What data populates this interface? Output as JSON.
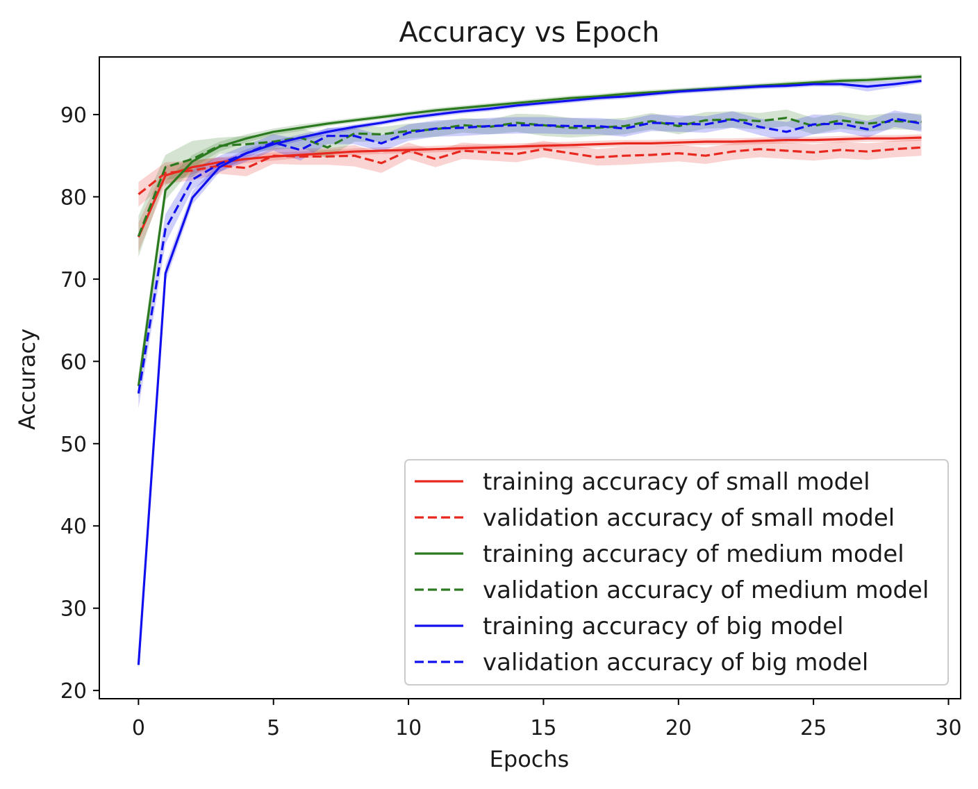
{
  "chart_data": {
    "type": "line",
    "title": "Accuracy vs Epoch",
    "xlabel": "Epochs",
    "ylabel": "Accuracy",
    "xlim": [
      -1.45,
      30.45
    ],
    "ylim": [
      19,
      97
    ],
    "xticks": [
      0,
      5,
      10,
      15,
      20,
      25,
      30
    ],
    "yticks": [
      20,
      30,
      40,
      50,
      60,
      70,
      80,
      90
    ],
    "grid": false,
    "legend_position": "lower right",
    "x": [
      0,
      1,
      2,
      3,
      4,
      5,
      6,
      7,
      8,
      9,
      10,
      11,
      12,
      13,
      14,
      15,
      16,
      17,
      18,
      19,
      20,
      21,
      22,
      23,
      24,
      25,
      26,
      27,
      28,
      29
    ],
    "series": [
      {
        "name": "training accuracy of small model",
        "color": "#e8281e",
        "style": "solid",
        "values": [
          75.1,
          82.6,
          83.6,
          84.2,
          84.6,
          84.9,
          85.1,
          85.3,
          85.5,
          85.6,
          85.7,
          85.8,
          85.9,
          86.0,
          86.1,
          86.2,
          86.3,
          86.4,
          86.5,
          86.5,
          86.6,
          86.7,
          86.7,
          86.8,
          86.9,
          86.9,
          87.0,
          87.1,
          87.1,
          87.2
        ],
        "band": [
          1.8,
          1.2,
          0.8,
          0.6,
          0.5,
          0.5,
          0.4,
          0.4,
          0.4,
          0.4,
          0.4,
          0.4,
          0.4,
          0.4,
          0.4,
          0.4,
          0.4,
          0.4,
          0.4,
          0.4,
          0.4,
          0.4,
          0.4,
          0.4,
          0.4,
          0.4,
          0.4,
          0.4,
          0.4,
          0.4
        ]
      },
      {
        "name": "validation accuracy of small model",
        "color": "#e8281e",
        "style": "dashed",
        "values": [
          80.3,
          82.9,
          83.2,
          83.8,
          83.5,
          85.0,
          84.9,
          84.9,
          85.0,
          84.1,
          85.6,
          84.6,
          85.6,
          85.4,
          85.2,
          85.8,
          85.3,
          84.8,
          85.0,
          85.1,
          85.3,
          85.0,
          85.5,
          85.8,
          85.6,
          85.4,
          85.7,
          85.5,
          85.8,
          86.0
        ],
        "band": [
          1.5,
          1.3,
          1.2,
          1.0,
          1.0,
          1.0,
          1.0,
          1.0,
          1.3,
          1.2,
          1.0,
          1.0,
          1.0,
          1.0,
          1.0,
          1.0,
          1.0,
          1.0,
          1.1,
          1.0,
          1.0,
          1.0,
          1.0,
          1.0,
          1.0,
          1.0,
          1.0,
          1.0,
          1.0,
          1.0
        ]
      },
      {
        "name": "training accuracy of medium model",
        "color": "#2b7a1f",
        "style": "solid",
        "values": [
          57.0,
          80.8,
          84.3,
          86.1,
          87.1,
          87.9,
          88.4,
          88.9,
          89.3,
          89.7,
          90.1,
          90.5,
          90.8,
          91.1,
          91.4,
          91.7,
          92.0,
          92.2,
          92.5,
          92.7,
          92.9,
          93.1,
          93.3,
          93.5,
          93.7,
          93.9,
          94.1,
          94.2,
          94.4,
          94.6
        ],
        "band": [
          1.5,
          1.2,
          0.8,
          0.6,
          0.5,
          0.4,
          0.4,
          0.3,
          0.3,
          0.3,
          0.3,
          0.3,
          0.3,
          0.3,
          0.3,
          0.3,
          0.3,
          0.3,
          0.3,
          0.3,
          0.3,
          0.3,
          0.3,
          0.3,
          0.3,
          0.3,
          0.3,
          0.3,
          0.3,
          0.3
        ]
      },
      {
        "name": "validation accuracy of medium model",
        "color": "#2b7a1f",
        "style": "dashed",
        "values": [
          75.2,
          83.6,
          84.6,
          86.2,
          86.4,
          86.7,
          87.2,
          86.0,
          87.7,
          87.6,
          88.0,
          88.2,
          88.7,
          88.5,
          89.0,
          88.7,
          88.4,
          88.4,
          88.6,
          89.2,
          88.6,
          89.3,
          89.4,
          89.2,
          89.6,
          88.6,
          89.3,
          88.9,
          89.2,
          89.1
        ],
        "band": [
          2.5,
          1.5,
          2.2,
          1.0,
          1.0,
          1.0,
          1.2,
          1.3,
          1.0,
          0.9,
          0.9,
          0.9,
          0.9,
          0.9,
          1.1,
          1.3,
          1.2,
          1.0,
          1.0,
          1.0,
          1.0,
          1.0,
          1.0,
          1.0,
          1.0,
          1.0,
          1.0,
          1.0,
          1.0,
          1.0
        ]
      },
      {
        "name": "training accuracy of big model",
        "color": "#1010ee",
        "style": "solid",
        "values": [
          23.1,
          70.7,
          79.9,
          83.6,
          85.3,
          86.4,
          87.2,
          87.9,
          88.5,
          89.0,
          89.6,
          90.0,
          90.4,
          90.7,
          91.1,
          91.4,
          91.7,
          92.0,
          92.2,
          92.5,
          92.8,
          93.0,
          93.2,
          93.4,
          93.5,
          93.7,
          93.7,
          93.4,
          93.7,
          94.1
        ],
        "band": [
          0.6,
          1.0,
          0.8,
          0.6,
          0.5,
          0.4,
          0.4,
          0.4,
          0.3,
          0.3,
          0.3,
          0.3,
          0.3,
          0.3,
          0.3,
          0.3,
          0.3,
          0.3,
          0.3,
          0.3,
          0.3,
          0.3,
          0.3,
          0.3,
          0.3,
          0.3,
          0.3,
          0.6,
          0.4,
          0.3
        ]
      },
      {
        "name": "validation accuracy of big model",
        "color": "#1010ee",
        "style": "dashed",
        "values": [
          56.1,
          76.1,
          82.1,
          84.0,
          85.3,
          86.6,
          85.7,
          87.4,
          87.4,
          86.5,
          87.8,
          88.3,
          88.4,
          88.6,
          88.7,
          88.7,
          88.6,
          88.6,
          88.3,
          89.0,
          88.9,
          88.8,
          89.4,
          88.5,
          87.9,
          88.8,
          88.9,
          88.2,
          89.5,
          88.9
        ],
        "band": [
          1.8,
          1.8,
          1.2,
          1.0,
          1.0,
          1.0,
          1.3,
          1.0,
          1.0,
          1.0,
          1.0,
          1.0,
          1.0,
          1.0,
          1.0,
          1.0,
          1.0,
          1.0,
          1.0,
          1.0,
          1.0,
          1.0,
          1.0,
          1.0,
          1.2,
          1.2,
          1.0,
          1.0,
          1.0,
          1.0
        ]
      }
    ]
  }
}
